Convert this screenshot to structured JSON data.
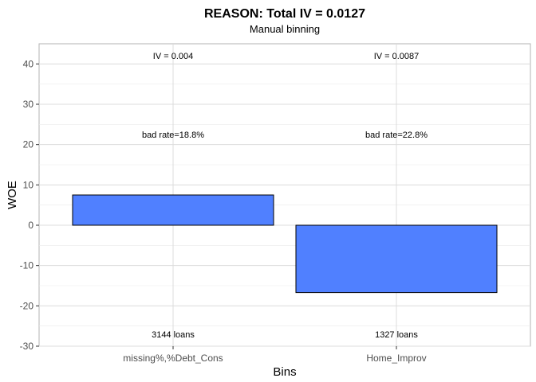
{
  "chart_data": {
    "type": "bar",
    "title": "REASON: Total IV = 0.0127",
    "subtitle": "Manual binning",
    "xlabel": "Bins",
    "ylabel": "WOE",
    "categories": [
      "missing%,%Debt_Cons",
      "Home_Improv"
    ],
    "values": [
      7.5,
      -16.7
    ],
    "ylim": [
      -30,
      45
    ],
    "yticks": [
      -30,
      -20,
      -10,
      0,
      10,
      20,
      30,
      40
    ],
    "grid": true,
    "bar_color": "#5080FF",
    "bar_border_color": "#000000",
    "annotations": [
      {
        "iv": "IV = 0.004",
        "bad_rate": "bad rate=18.8%",
        "loans": "3144 loans"
      },
      {
        "iv": "IV = 0.0087",
        "bad_rate": "bad rate=22.8%",
        "loans": "1327 loans"
      }
    ],
    "annotation_levels": {
      "iv": 42,
      "bad_rate": 22.5,
      "loans": -27
    }
  }
}
